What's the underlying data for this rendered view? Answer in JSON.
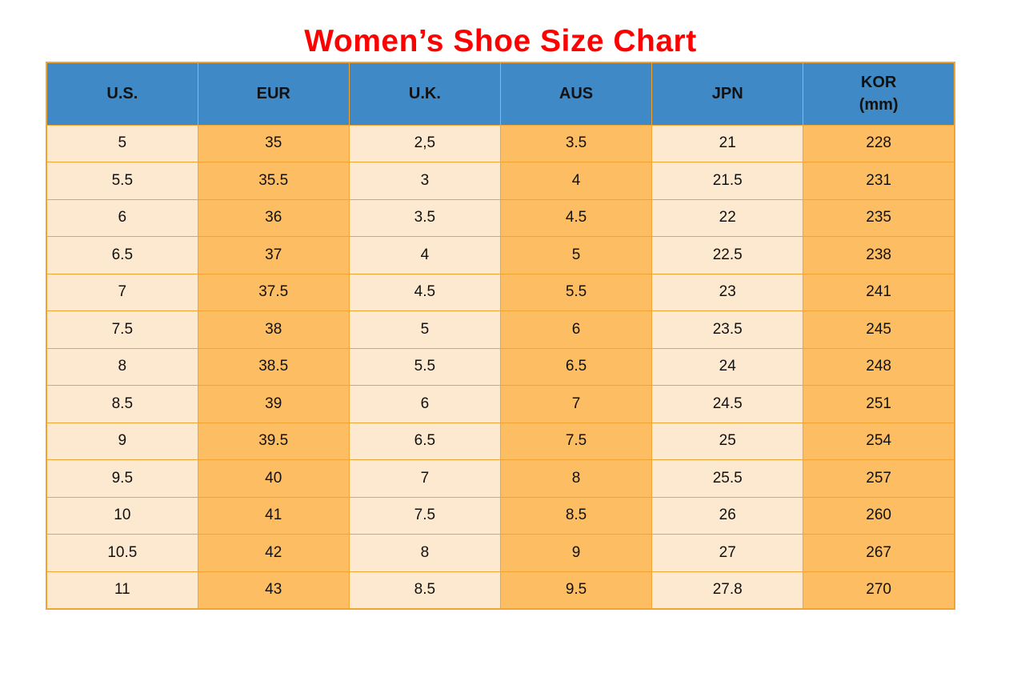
{
  "page": {
    "title": "Women’s Shoe Size Chart"
  },
  "colors": {
    "title_red": "#FF0000",
    "header_blue": "#3E89C6",
    "cell_cream": "#FCE9CF",
    "cell_orange": "#FDBE63",
    "border_orange": "#F2A433",
    "text_black": "#111111"
  },
  "chart_data": {
    "type": "table",
    "title": "Women’s Shoe Size Chart",
    "columns": [
      "U.S.",
      "EUR",
      "U.K.",
      "AUS",
      "JPN",
      "KOR\n(mm)"
    ],
    "column_styles": [
      "cream",
      "orange",
      "cream",
      "orange",
      "cream",
      "orange"
    ],
    "rows": [
      [
        "5",
        "35",
        "2,5",
        "3.5",
        "21",
        "228"
      ],
      [
        "5.5",
        "35.5",
        "3",
        "4",
        "21.5",
        "231"
      ],
      [
        "6",
        "36",
        "3.5",
        "4.5",
        "22",
        "235"
      ],
      [
        "6.5",
        "37",
        "4",
        "5",
        "22.5",
        "238"
      ],
      [
        "7",
        "37.5",
        "4.5",
        "5.5",
        "23",
        "241"
      ],
      [
        "7.5",
        "38",
        "5",
        "6",
        "23.5",
        "245"
      ],
      [
        "8",
        "38.5",
        "5.5",
        "6.5",
        "24",
        "248"
      ],
      [
        "8.5",
        "39",
        "6",
        "7",
        "24.5",
        "251"
      ],
      [
        "9",
        "39.5",
        "6.5",
        "7.5",
        "25",
        "254"
      ],
      [
        "9.5",
        "40",
        "7",
        "8",
        "25.5",
        "257"
      ],
      [
        "10",
        "41",
        "7.5",
        "8.5",
        "26",
        "260"
      ],
      [
        "10.5",
        "42",
        "8",
        "9",
        "27",
        "267"
      ],
      [
        "11",
        "43",
        "8.5",
        "9.5",
        "27.8",
        "270"
      ]
    ]
  }
}
